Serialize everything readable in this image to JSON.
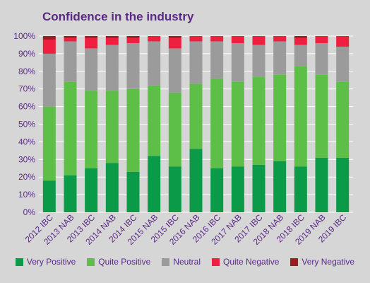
{
  "chart_data": {
    "type": "bar",
    "stacked": true,
    "title": "Confidence in the industry",
    "categories": [
      "2012 IBC",
      "2013 NAB",
      "2013 IBC",
      "2014 NAB",
      "2014 IBC",
      "2015 NAB",
      "2015 IBC",
      "2016 NAB",
      "2016 IBC",
      "2017 NAB",
      "2017 IBC",
      "2018 NAB",
      "2018 IBC",
      "2019 NAB",
      "2019 IBC"
    ],
    "series": [
      {
        "name": "Very Positive",
        "color": "#0a9a48",
        "values": [
          18,
          21,
          25,
          28,
          23,
          32,
          26,
          36,
          25,
          26,
          27,
          29,
          26,
          31,
          31
        ]
      },
      {
        "name": "Quite Positive",
        "color": "#5dbf48",
        "values": [
          42,
          53,
          44,
          41,
          47,
          40,
          42,
          37,
          51,
          48,
          50,
          49,
          57,
          47,
          43
        ]
      },
      {
        "name": "Neutral",
        "color": "#9b9b9b",
        "values": [
          30,
          23,
          24,
          26,
          26,
          25,
          25,
          24,
          21,
          22,
          18,
          19,
          12,
          18,
          20
        ]
      },
      {
        "name": "Quite Negative",
        "color": "#ee1f3f",
        "values": [
          8,
          2,
          6,
          4,
          3,
          3,
          6,
          3,
          3,
          4,
          5,
          3,
          4,
          4,
          6
        ]
      },
      {
        "name": "Very Negative",
        "color": "#9b1c22",
        "values": [
          2,
          1,
          1,
          1,
          1,
          0,
          1,
          0,
          0,
          0,
          0,
          0,
          1,
          0,
          0
        ]
      }
    ],
    "ylim": [
      0,
      100
    ],
    "yticks": [
      "0%",
      "10%",
      "20%",
      "30%",
      "40%",
      "50%",
      "60%",
      "70%",
      "80%",
      "90%",
      "100%"
    ],
    "grid": true,
    "legend": "bottom"
  }
}
